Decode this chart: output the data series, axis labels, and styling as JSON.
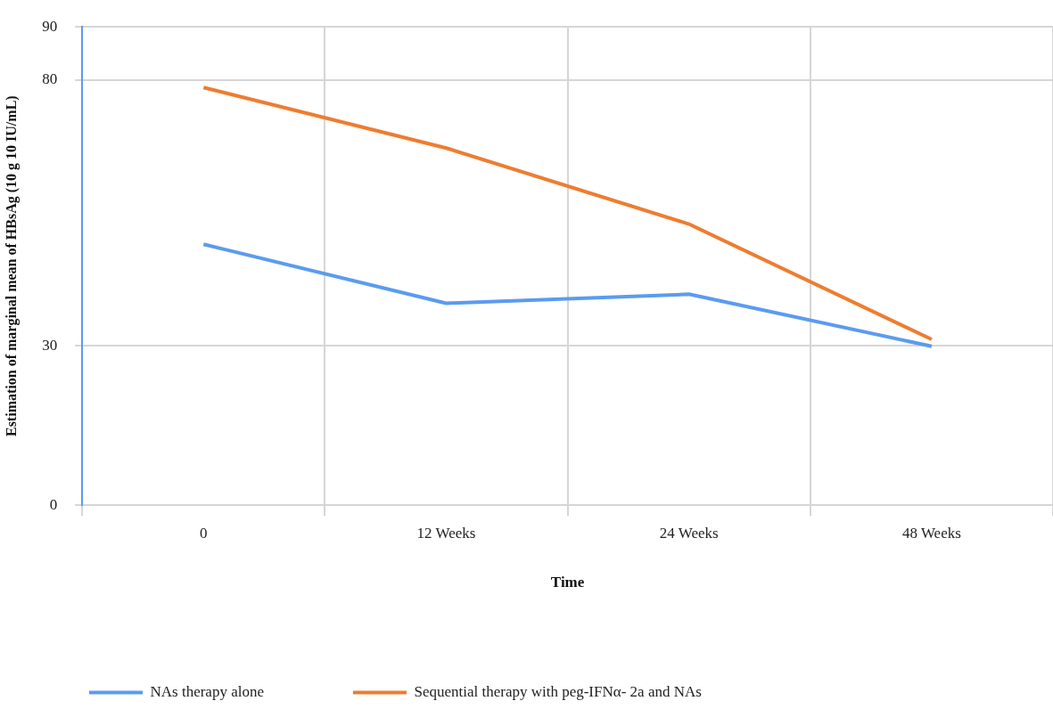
{
  "chart_data": {
    "type": "line",
    "xlabel": "Time",
    "ylabel": "Estimation of marginal mean of HBsAg (10 g 10 IU/mL)",
    "categories": [
      "0",
      "12 Weeks",
      "24 Weeks",
      "48 Weeks"
    ],
    "series": [
      {
        "name": "NAs therapy alone",
        "color": "#5b9bf0",
        "values": [
          49.1,
          38.0,
          39.7,
          29.9
        ]
      },
      {
        "name": "Sequential therapy with peg-IFNα- 2a and NAs",
        "color": "#ed7d31",
        "values": [
          78.6,
          67.2,
          52.9,
          31.2
        ]
      }
    ],
    "ylim": [
      0,
      90
    ],
    "yticks": [
      0,
      30,
      80,
      90
    ],
    "grid": true,
    "legend": "bottom",
    "marker": "none",
    "line_style": "solid"
  }
}
